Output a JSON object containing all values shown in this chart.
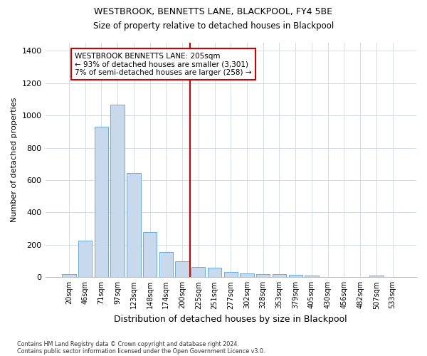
{
  "title1": "WESTBROOK, BENNETTS LANE, BLACKPOOL, FY4 5BE",
  "title2": "Size of property relative to detached houses in Blackpool",
  "xlabel": "Distribution of detached houses by size in Blackpool",
  "ylabel": "Number of detached properties",
  "categories": [
    "20sqm",
    "46sqm",
    "71sqm",
    "97sqm",
    "123sqm",
    "148sqm",
    "174sqm",
    "200sqm",
    "225sqm",
    "251sqm",
    "277sqm",
    "302sqm",
    "328sqm",
    "353sqm",
    "379sqm",
    "405sqm",
    "430sqm",
    "456sqm",
    "482sqm",
    "507sqm",
    "533sqm"
  ],
  "values": [
    20,
    225,
    930,
    1065,
    645,
    280,
    155,
    100,
    65,
    60,
    30,
    25,
    18,
    18,
    14,
    10,
    0,
    0,
    0,
    12,
    0
  ],
  "bar_color": "#c8d9ed",
  "bar_edge_color": "#6aaed6",
  "grid_color": "#d4dde8",
  "vline_color": "#cc0000",
  "annotation_text": "WESTBROOK BENNETTS LANE: 205sqm\n← 93% of detached houses are smaller (3,301)\n7% of semi-detached houses are larger (258) →",
  "annotation_box_color": "#cc0000",
  "ylim": [
    0,
    1450
  ],
  "yticks": [
    0,
    200,
    400,
    600,
    800,
    1000,
    1200,
    1400
  ],
  "footnote1": "Contains HM Land Registry data © Crown copyright and database right 2024.",
  "footnote2": "Contains public sector information licensed under the Open Government Licence v3.0.",
  "fig_bg_color": "#ffffff",
  "plot_bg_color": "#ffffff"
}
